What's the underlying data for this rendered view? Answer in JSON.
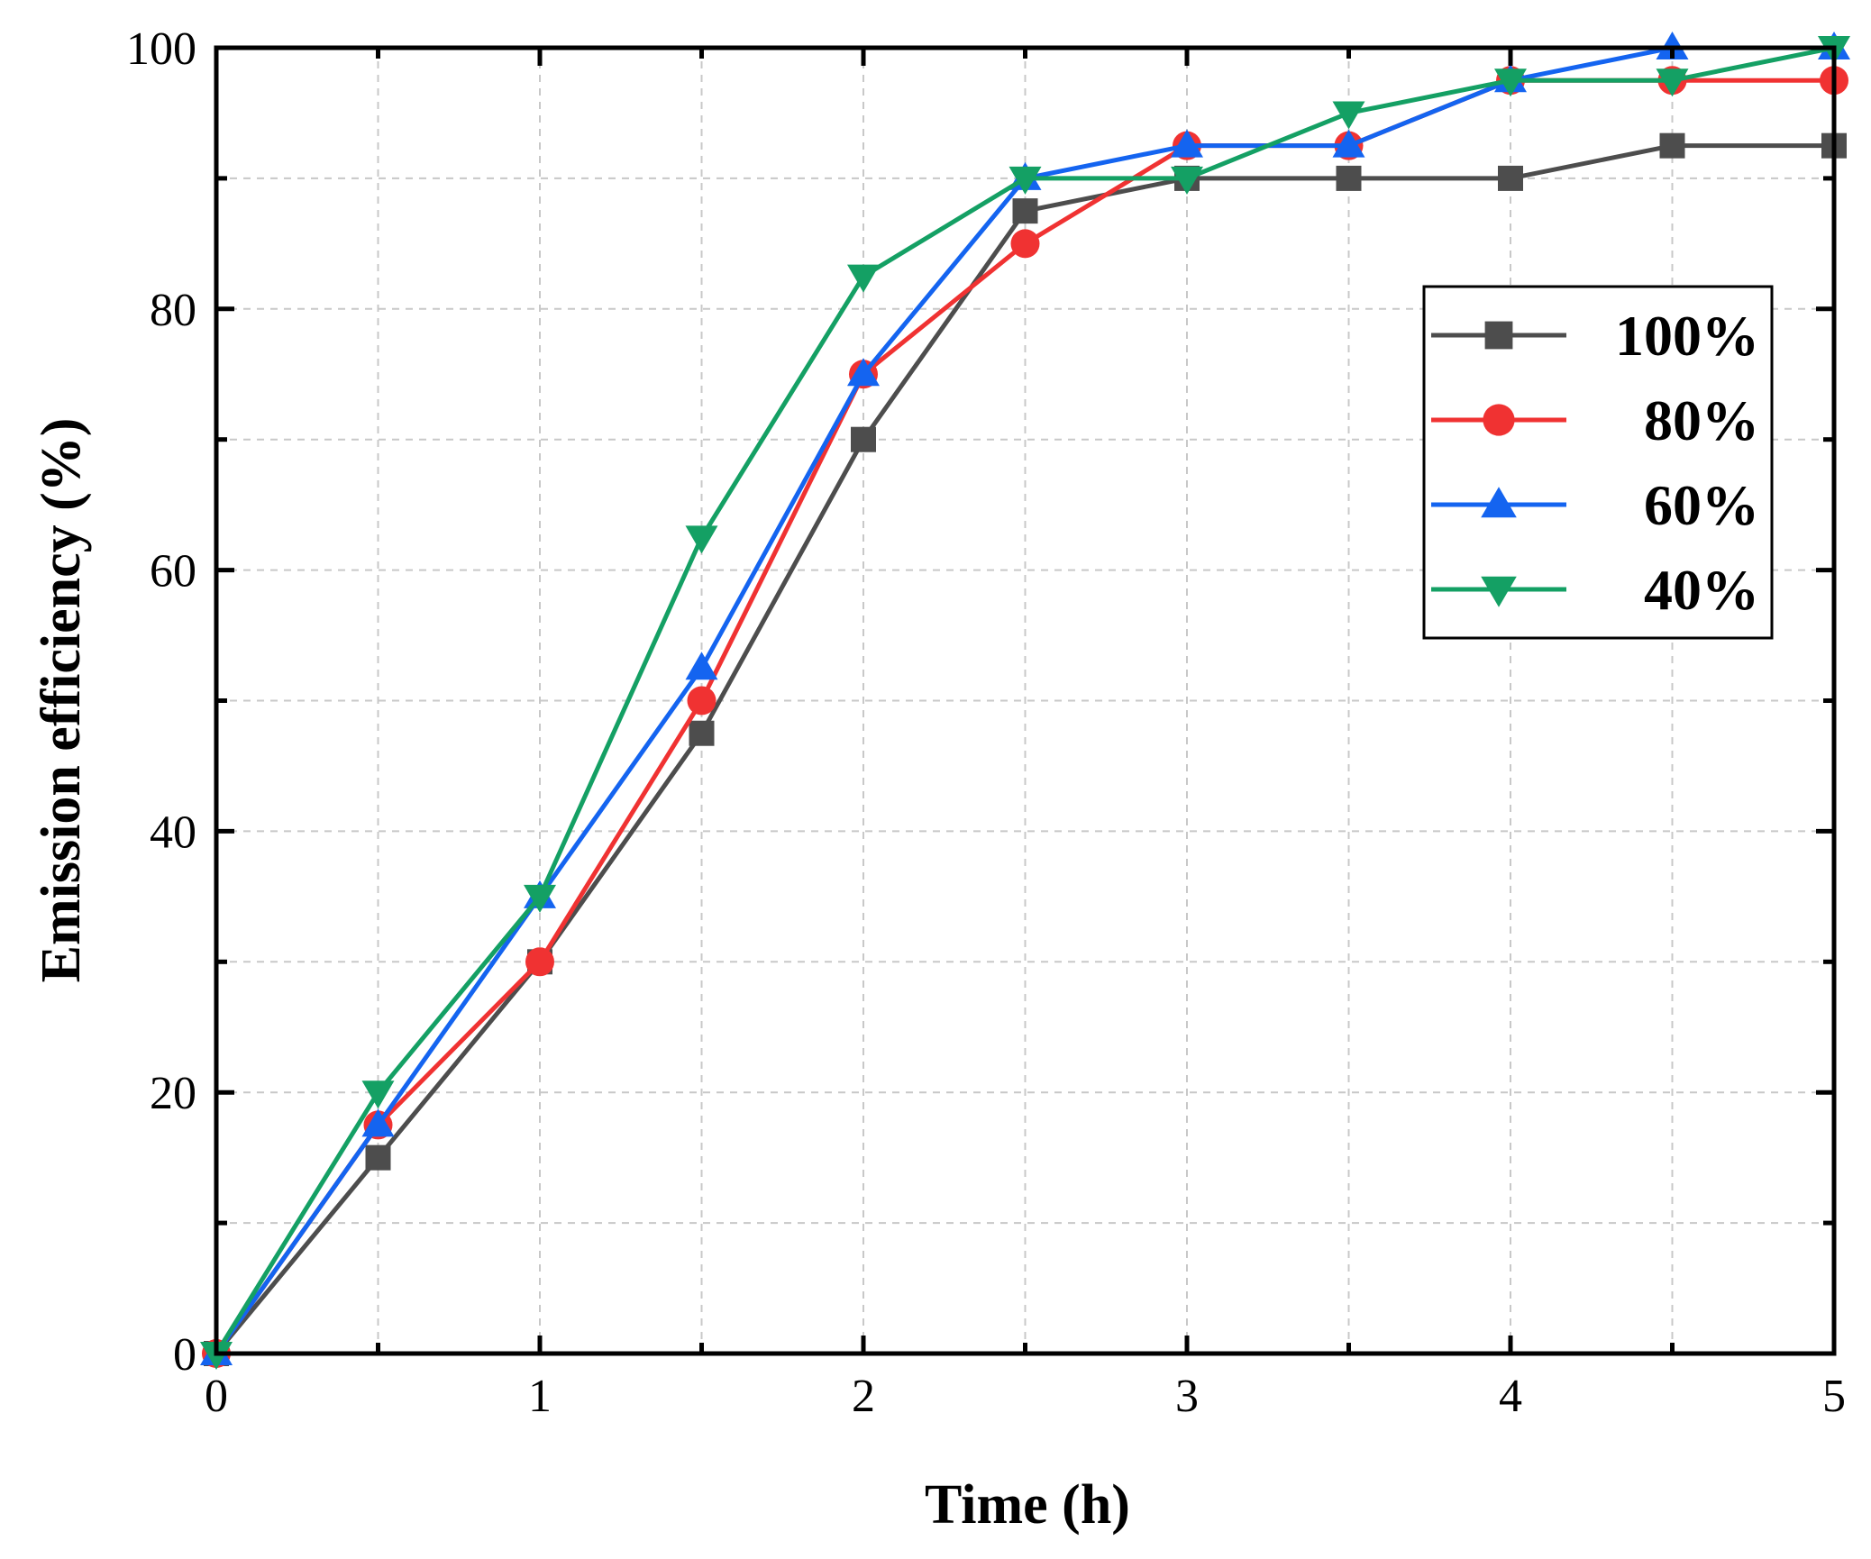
{
  "chart_data": {
    "type": "line",
    "title": "",
    "xlabel": "Time (h)",
    "ylabel": "Emission efficiency (%)",
    "xlim": [
      0,
      5
    ],
    "ylim": [
      0,
      100
    ],
    "xticks": [
      0,
      1,
      2,
      3,
      4,
      5
    ],
    "yticks": [
      0,
      20,
      40,
      60,
      80,
      100
    ],
    "grid": true,
    "legend_position": "top-right",
    "x": [
      0,
      0.5,
      1,
      1.5,
      2,
      2.5,
      3,
      3.5,
      4,
      4.5,
      5
    ],
    "series": [
      {
        "name": "100%",
        "color": "#4d4d4d",
        "marker": "square",
        "values": [
          0,
          15,
          30,
          47.5,
          70,
          87.5,
          90,
          90,
          90,
          92.5,
          92.5
        ]
      },
      {
        "name": "80%",
        "color": "#f03232",
        "marker": "circle",
        "values": [
          0,
          17.5,
          30,
          50,
          75,
          85,
          92.5,
          92.5,
          97.5,
          97.5,
          97.5
        ]
      },
      {
        "name": "60%",
        "color": "#1464f0",
        "marker": "triangle-up",
        "values": [
          0,
          17.5,
          35,
          52.5,
          75,
          90,
          92.5,
          92.5,
          97.5,
          100,
          100
        ]
      },
      {
        "name": "40%",
        "color": "#14a064",
        "marker": "triangle-down",
        "values": [
          0,
          20,
          35,
          62.5,
          82.5,
          90,
          90,
          95,
          97.5,
          97.5,
          100
        ]
      }
    ]
  }
}
